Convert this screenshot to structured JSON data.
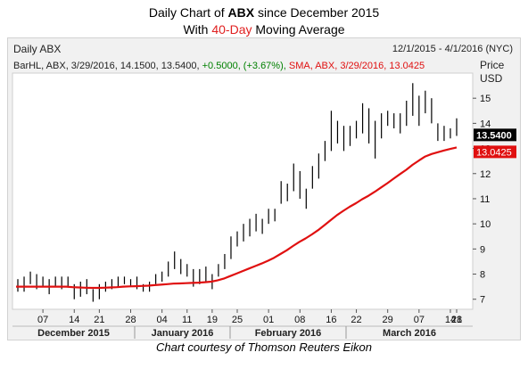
{
  "title": {
    "prefix": "Daily Chart of ",
    "ticker": "ABX",
    "suffix": " since December 2015",
    "line2_prefix": "With ",
    "line2_highlight": "40-Day",
    "line2_suffix": " Moving Average"
  },
  "panel": {
    "label": "Daily ABX",
    "range": "12/1/2015 - 4/1/2016 (NYC)",
    "legend_bar": "BarHL, ABX, 3/29/2016, 14.1500, 13.5400,",
    "legend_change": "+0.5000, (+3.67%),",
    "legend_sma": "SMA, ABX, 3/29/2016, 13.0425",
    "axis_title_1": "Price",
    "axis_title_2": "USD"
  },
  "credit": "Chart courtesy of Thomson Reuters Eikon",
  "colors": {
    "sma": "#e01010",
    "change": "#008000",
    "bars": "#000000",
    "last_price_bg": "#000000",
    "sma_tag_bg": "#e01010"
  },
  "chart_data": {
    "type": "bar",
    "subtype": "high-low bars with moving average line",
    "ylim": [
      6.6,
      16.0
    ],
    "yticks": [
      7,
      8,
      9,
      10,
      11,
      12,
      13,
      14,
      15
    ],
    "day_ticks": [
      "07",
      "14",
      "21",
      "28",
      "04",
      "11",
      "19",
      "25",
      "01",
      "08",
      "16",
      "22",
      "29",
      "07",
      "14",
      "21",
      "28"
    ],
    "month_labels": [
      "December 2015",
      "January 2016",
      "February 2016",
      "March 2016"
    ],
    "last_price": "13.5400",
    "sma_last": "13.0425",
    "bars": [
      [
        7.3,
        7.8
      ],
      [
        7.3,
        7.9
      ],
      [
        7.6,
        8.1
      ],
      [
        7.4,
        8.0
      ],
      [
        7.5,
        7.9
      ],
      [
        7.2,
        7.8
      ],
      [
        7.5,
        7.9
      ],
      [
        7.4,
        7.9
      ],
      [
        7.5,
        7.9
      ],
      [
        7.0,
        7.6
      ],
      [
        7.1,
        7.7
      ],
      [
        7.2,
        7.8
      ],
      [
        6.9,
        7.4
      ],
      [
        7.0,
        7.6
      ],
      [
        7.3,
        7.7
      ],
      [
        7.4,
        7.8
      ],
      [
        7.5,
        7.9
      ],
      [
        7.6,
        7.9
      ],
      [
        7.5,
        7.8
      ],
      [
        7.4,
        7.9
      ],
      [
        7.3,
        7.6
      ],
      [
        7.3,
        7.7
      ],
      [
        7.6,
        8.0
      ],
      [
        7.7,
        8.1
      ],
      [
        7.9,
        8.5
      ],
      [
        8.2,
        8.9
      ],
      [
        8.0,
        8.6
      ],
      [
        7.9,
        8.4
      ],
      [
        7.5,
        8.2
      ],
      [
        7.6,
        8.2
      ],
      [
        7.7,
        8.3
      ],
      [
        7.4,
        8.0
      ],
      [
        7.9,
        8.4
      ],
      [
        8.2,
        8.8
      ],
      [
        8.6,
        9.5
      ],
      [
        9.1,
        9.7
      ],
      [
        9.3,
        10.0
      ],
      [
        9.5,
        10.2
      ],
      [
        9.7,
        10.4
      ],
      [
        9.6,
        10.2
      ],
      [
        10.0,
        10.6
      ],
      [
        10.1,
        10.6
      ],
      [
        10.8,
        11.7
      ],
      [
        10.9,
        11.6
      ],
      [
        11.3,
        12.4
      ],
      [
        11.0,
        12.1
      ],
      [
        10.6,
        11.4
      ],
      [
        11.4,
        12.3
      ],
      [
        11.8,
        12.8
      ],
      [
        12.5,
        13.3
      ],
      [
        12.9,
        14.5
      ],
      [
        13.2,
        14.1
      ],
      [
        12.9,
        13.9
      ],
      [
        13.1,
        13.9
      ],
      [
        13.4,
        14.1
      ],
      [
        13.6,
        14.8
      ],
      [
        13.2,
        14.6
      ],
      [
        12.6,
        14.1
      ],
      [
        13.4,
        14.4
      ],
      [
        13.9,
        14.5
      ],
      [
        13.8,
        14.4
      ],
      [
        13.6,
        14.4
      ],
      [
        13.9,
        14.9
      ],
      [
        14.3,
        15.6
      ],
      [
        13.9,
        15.1
      ],
      [
        14.4,
        15.3
      ],
      [
        14.0,
        15.0
      ],
      [
        13.3,
        14.0
      ],
      [
        13.3,
        13.9
      ],
      [
        13.4,
        13.8
      ],
      [
        13.5,
        14.2
      ]
    ],
    "sma": [
      7.5,
      7.5,
      7.5,
      7.5,
      7.5,
      7.5,
      7.5,
      7.5,
      7.5,
      7.48,
      7.47,
      7.46,
      7.45,
      7.45,
      7.46,
      7.47,
      7.48,
      7.5,
      7.51,
      7.52,
      7.53,
      7.54,
      7.56,
      7.58,
      7.6,
      7.62,
      7.63,
      7.64,
      7.65,
      7.66,
      7.68,
      7.7,
      7.75,
      7.82,
      7.92,
      8.02,
      8.12,
      8.22,
      8.32,
      8.42,
      8.53,
      8.65,
      8.8,
      8.95,
      9.12,
      9.28,
      9.42,
      9.58,
      9.75,
      9.95,
      10.15,
      10.35,
      10.52,
      10.68,
      10.82,
      10.98,
      11.12,
      11.28,
      11.45,
      11.62,
      11.8,
      11.98,
      12.15,
      12.35,
      12.52,
      12.68,
      12.78,
      12.85,
      12.92,
      12.98,
      13.04
    ]
  }
}
